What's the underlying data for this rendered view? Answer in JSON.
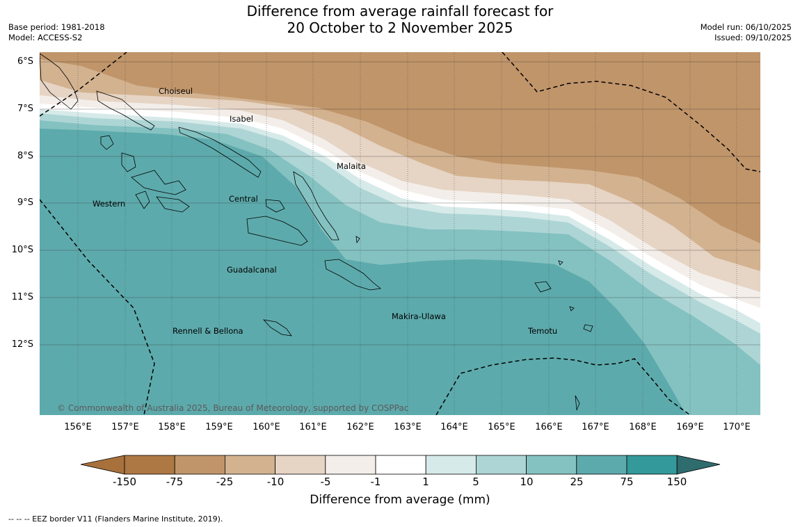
{
  "title": {
    "line1": "Difference from average rainfall forecast for",
    "line2": "20 October to 2 November 2025"
  },
  "meta": {
    "base_period": "Base period: 1981-2018",
    "model": "Model: ACCESS-S2",
    "model_run": "Model run: 06/10/2025",
    "issued": "Issued: 09/10/2025"
  },
  "map": {
    "lat_labels": [
      "6°S",
      "7°S",
      "8°S",
      "9°S",
      "10°S",
      "11°S",
      "12°S"
    ],
    "lon_labels": [
      "156°E",
      "157°E",
      "158°E",
      "159°E",
      "160°E",
      "161°E",
      "162°E",
      "163°E",
      "164°E",
      "165°E",
      "166°E",
      "167°E",
      "168°E",
      "169°E",
      "170°E"
    ],
    "regions": {
      "choiseul": "Choiseul",
      "isabel": "Isabel",
      "malaita": "Malaita",
      "western": "Western",
      "central": "Central",
      "guadalcanal": "Guadalcanal",
      "makira": "Makira-Ulawa",
      "rennell": "Rennell & Bellona",
      "temotu": "Temotu"
    },
    "copyright": "© Commonwealth of Australia 2025, Bureau of Meteorology, supported by COSPPac"
  },
  "colorbar": {
    "labels": [
      "-150",
      "-75",
      "-25",
      "-10",
      "-5",
      "-1",
      "1",
      "5",
      "10",
      "25",
      "75",
      "150"
    ],
    "colors": [
      "#a8713c",
      "#ad7843",
      "#c0956a",
      "#d3b290",
      "#e6d4c4",
      "#f3eee9",
      "#ffffff",
      "#d6eae9",
      "#aed5d5",
      "#84c2c1",
      "#5daaac",
      "#33999a",
      "#2f6c6e"
    ],
    "title": "Difference from average (mm)"
  },
  "footnote": "--  --  -- EEZ border V11 (Flanders Marine Institute, 2019)."
}
